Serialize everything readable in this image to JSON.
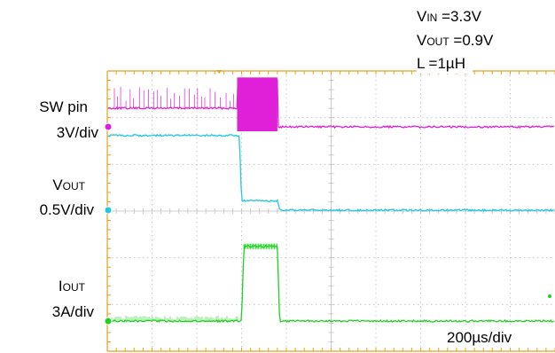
{
  "annotations": {
    "vin": {
      "main": "V",
      "sub": "IN",
      "rest": " =3.3V"
    },
    "vout": {
      "main": "V",
      "sub": "OUT",
      "rest": " =0.9V"
    },
    "inductor": "L =1µH"
  },
  "channels": [
    {
      "name": "SW  pin",
      "scale": "3V/div",
      "color": "#e020d8"
    },
    {
      "name_main": "V",
      "name_sub": "OUT",
      "scale": "0.5V/div",
      "color": "#20c8e0"
    },
    {
      "name_main": "I",
      "name_sub": "OUT",
      "scale": "3A/div",
      "color": "#20d020"
    }
  ],
  "timebase": "200µs/div",
  "colors": {
    "grid": "#bfbfbf",
    "frame": "#e8a020",
    "background": "#ffffff"
  },
  "chart_data": {
    "type": "line",
    "x_unit": "div",
    "xlim": [
      0,
      10
    ],
    "grid": true,
    "series": [
      {
        "name": "SW pin",
        "x": [
          0,
          0.1,
          2.9,
          2.9,
          3.8,
          3.8,
          10
        ],
        "y": [
          0.4,
          0.4,
          0.4,
          1.0,
          1.0,
          0,
          0
        ],
        "note": "switching bursts up to 1 div before 2.9 div; dense switching 2.9–3.8 div; 0 afterwards"
      },
      {
        "name": "VOUT",
        "x": [
          0,
          2.95,
          3.0,
          3.8,
          3.85,
          10
        ],
        "y": [
          1.6,
          1.6,
          0.2,
          0.2,
          0,
          0
        ]
      },
      {
        "name": "IOUT",
        "x": [
          0,
          3.0,
          3.05,
          3.8,
          3.85,
          10
        ],
        "y": [
          0,
          0,
          1.6,
          1.6,
          0,
          0
        ]
      }
    ]
  }
}
